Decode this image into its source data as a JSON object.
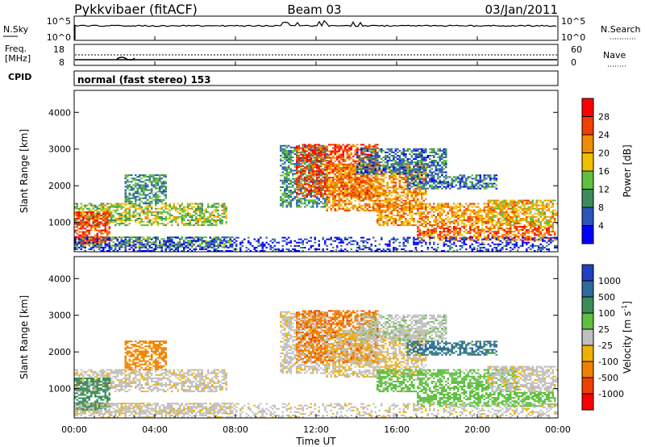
{
  "header": {
    "station": "Pykkvibaer (fitACF)",
    "beam": "Beam 03",
    "date": "03/Jan/2011"
  },
  "noise_panel": {
    "left_label": "N.Sky",
    "left_ticks": [
      "10^5",
      "10^0"
    ],
    "right_ticks": [
      "10^5",
      "10^0"
    ],
    "right_label": "N.Search",
    "right_label_style": "dotted"
  },
  "freq_panel": {
    "left_label_line1": "Freq.",
    "left_label_line2": "[MHz]",
    "left_ticks": [
      "18",
      "8"
    ],
    "right_ticks": [
      "60",
      "0"
    ],
    "right_label": "Nave",
    "right_label_style": "dotted"
  },
  "cpid": {
    "label": "CPID",
    "text": "normal (fast stereo) 153"
  },
  "power_panel": {
    "ylabel": "Slant Range [km]",
    "yticks": [
      "1000",
      "2000",
      "3000",
      "4000"
    ],
    "colorbar_label": "Power [dB]",
    "colorbar_ticks": [
      "4",
      "8",
      "12",
      "16",
      "20",
      "24",
      "28"
    ],
    "colorbar_colors": [
      "#0000ff",
      "#2956b8",
      "#3c8c5a",
      "#5fbf3f",
      "#f0c000",
      "#f08c00",
      "#f04000",
      "#ff0000"
    ]
  },
  "velocity_panel": {
    "ylabel": "Slant Range [km]",
    "yticks": [
      "1000",
      "2000",
      "3000",
      "4000"
    ],
    "colorbar_label": "Velocity [m s",
    "colorbar_label_sup": "-1",
    "colorbar_label_end": "]",
    "colorbar_ticks": [
      "1000",
      "500",
      "100",
      "25",
      "-25",
      "-100",
      "-500",
      "-1000"
    ],
    "colorbar_colors": [
      "#2040c0",
      "#2e6a9c",
      "#3c8c5a",
      "#5fbf3f",
      "#c0c0c0",
      "#f0b000",
      "#f08000",
      "#f04000",
      "#ff0000"
    ]
  },
  "xaxis": {
    "label": "Time UT",
    "ticks": [
      "00:00",
      "04:00",
      "08:00",
      "12:00",
      "16:00",
      "20:00",
      "00:00"
    ]
  },
  "chart_data": {
    "type": "heatmap",
    "x_range_hours": [
      0,
      24
    ],
    "y_range_km": [
      200,
      4600
    ],
    "power_range_db": [
      3,
      31
    ],
    "velocity_range": [
      -1200,
      1200
    ],
    "echo_regions": [
      {
        "t0": 0.0,
        "t1": 7.8,
        "r0": 300,
        "r1": 600,
        "p": 14,
        "v": -10
      },
      {
        "t0": 0.0,
        "t1": 7.5,
        "r0": 900,
        "r1": 1500,
        "p": 16,
        "v": -5
      },
      {
        "t0": 0.0,
        "t1": 1.8,
        "r0": 400,
        "r1": 1300,
        "p": 26,
        "v": 300
      },
      {
        "t0": 2.5,
        "t1": 4.5,
        "r0": 1500,
        "r1": 2300,
        "p": 12,
        "v": -150
      },
      {
        "t0": 10.2,
        "t1": 12.5,
        "r0": 1400,
        "r1": 3100,
        "p": 12,
        "v": -5
      },
      {
        "t0": 11.0,
        "t1": 15.0,
        "r0": 1700,
        "r1": 3100,
        "p": 26,
        "v": -400
      },
      {
        "t0": 12.5,
        "t1": 17.5,
        "r0": 1300,
        "r1": 2600,
        "p": 22,
        "v": -20
      },
      {
        "t0": 14.0,
        "t1": 18.5,
        "r0": 2300,
        "r1": 3000,
        "p": 10,
        "v": 5
      },
      {
        "t0": 16.5,
        "t1": 21.0,
        "r0": 1900,
        "r1": 2300,
        "p": 10,
        "v": 600
      },
      {
        "t0": 15.0,
        "t1": 22.0,
        "r0": 900,
        "r1": 1500,
        "p": 22,
        "v": 50
      },
      {
        "t0": 17.0,
        "t1": 23.9,
        "r0": 500,
        "r1": 900,
        "p": 24,
        "v": 60
      },
      {
        "t0": 20.5,
        "t1": 24.0,
        "r0": 900,
        "r1": 1600,
        "p": 20,
        "v": -5
      }
    ],
    "ground_scatter_band": {
      "t0": 0,
      "t1": 24,
      "r0": 200,
      "r1": 600,
      "p": 6,
      "v": -5
    }
  }
}
